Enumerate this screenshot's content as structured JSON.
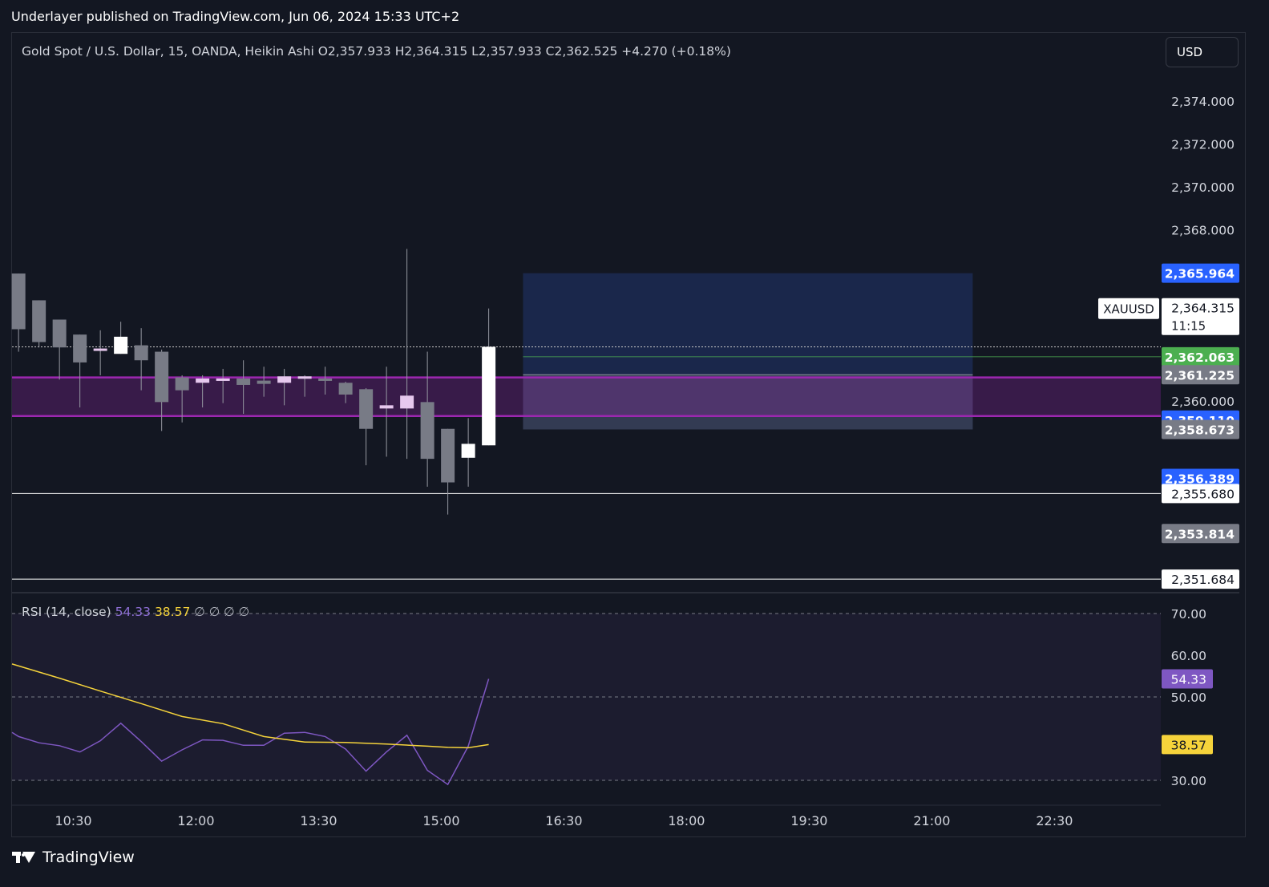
{
  "header": {
    "published_text": "Underlayer published on TradingView.com, Jun 06, 2024 15:33 UTC+2"
  },
  "legend": {
    "symbol": "Gold Spot / U.S. Dollar, 15, OANDA, Heikin Ashi",
    "open": "O2,357.933",
    "high": "H2,364.315",
    "low": "L2,357.933",
    "close": "C2,362.525",
    "change": "+4.270 (+0.18%)"
  },
  "currency_button": "USD",
  "footer": {
    "brand": "TradingView",
    "icon": "tradingview-logo-icon"
  },
  "colors": {
    "background": "#131722",
    "candle_up": "#ffffff",
    "candle_down": "#787b86",
    "candle_mid": "#e6c8ee",
    "zone_purple": "#9c27b0",
    "box_blue": "#1c2a52",
    "rsi_line": "#7e57c2",
    "rsi_ma": "#f5d33b",
    "label_blue": "#2962ff",
    "label_green": "#4caf50",
    "label_gray": "#787b86"
  },
  "chart_data": [
    {
      "type": "candlestick",
      "style": "Heikin Ashi",
      "symbol": "XAUUSD",
      "ylim": [
        2351.0,
        2375.5
      ],
      "y_ticks": [
        "2,374.000",
        "2,372.000",
        "2,370.000",
        "2,368.000",
        "2,360.000"
      ],
      "x_ticks": [
        "10:30",
        "12:00",
        "13:30",
        "15:00",
        "16:30",
        "18:00",
        "19:30",
        "21:00",
        "22:30"
      ],
      "x_range": [
        9.75,
        23.8
      ],
      "candles": [
        {
          "t": 9.83,
          "o": 2365.95,
          "c": 2363.35,
          "h": 2365.95,
          "l": 2362.3,
          "dir": "down"
        },
        {
          "t": 10.08,
          "o": 2364.7,
          "c": 2362.75,
          "h": 2364.7,
          "l": 2362.5,
          "dir": "down"
        },
        {
          "t": 10.33,
          "o": 2363.8,
          "c": 2362.5,
          "h": 2363.8,
          "l": 2361.0,
          "dir": "down"
        },
        {
          "t": 10.58,
          "o": 2363.1,
          "c": 2361.8,
          "h": 2363.1,
          "l": 2359.7,
          "dir": "down"
        },
        {
          "t": 10.83,
          "o": 2362.45,
          "c": 2362.35,
          "h": 2363.3,
          "l": 2361.2,
          "dir": "mid"
        },
        {
          "t": 11.08,
          "o": 2362.2,
          "c": 2363.0,
          "h": 2363.7,
          "l": 2362.2,
          "dir": "up"
        },
        {
          "t": 11.33,
          "o": 2362.6,
          "c": 2361.9,
          "h": 2363.4,
          "l": 2360.5,
          "dir": "down"
        },
        {
          "t": 11.58,
          "o": 2362.3,
          "c": 2359.95,
          "h": 2362.4,
          "l": 2358.6,
          "dir": "down"
        },
        {
          "t": 11.83,
          "o": 2361.1,
          "c": 2360.5,
          "h": 2361.2,
          "l": 2359.0,
          "dir": "down"
        },
        {
          "t": 12.08,
          "o": 2361.05,
          "c": 2360.85,
          "h": 2361.2,
          "l": 2359.7,
          "dir": "mid"
        },
        {
          "t": 12.33,
          "o": 2361.0,
          "c": 2361.05,
          "h": 2361.5,
          "l": 2359.9,
          "dir": "mid"
        },
        {
          "t": 12.58,
          "o": 2361.05,
          "c": 2360.75,
          "h": 2361.9,
          "l": 2359.4,
          "dir": "down"
        },
        {
          "t": 12.83,
          "o": 2360.95,
          "c": 2360.8,
          "h": 2361.6,
          "l": 2360.2,
          "dir": "down"
        },
        {
          "t": 13.08,
          "o": 2360.85,
          "c": 2361.15,
          "h": 2361.5,
          "l": 2359.8,
          "dir": "mid"
        },
        {
          "t": 13.33,
          "o": 2361.15,
          "c": 2361.05,
          "h": 2361.2,
          "l": 2360.2,
          "dir": "mid"
        },
        {
          "t": 13.58,
          "o": 2361.05,
          "c": 2360.95,
          "h": 2361.6,
          "l": 2360.3,
          "dir": "down"
        },
        {
          "t": 13.83,
          "o": 2360.85,
          "c": 2360.3,
          "h": 2360.9,
          "l": 2359.9,
          "dir": "down"
        },
        {
          "t": 14.08,
          "o": 2360.55,
          "c": 2358.7,
          "h": 2360.6,
          "l": 2357.0,
          "dir": "down"
        },
        {
          "t": 14.33,
          "o": 2359.65,
          "c": 2359.8,
          "h": 2361.6,
          "l": 2357.4,
          "dir": "mid"
        },
        {
          "t": 14.58,
          "o": 2359.65,
          "c": 2360.25,
          "h": 2367.1,
          "l": 2357.3,
          "dir": "mid"
        },
        {
          "t": 14.83,
          "o": 2359.95,
          "c": 2357.3,
          "h": 2362.3,
          "l": 2356.0,
          "dir": "down"
        },
        {
          "t": 15.08,
          "o": 2358.7,
          "c": 2356.2,
          "h": 2358.7,
          "l": 2354.7,
          "dir": "down"
        },
        {
          "t": 15.33,
          "o": 2357.35,
          "c": 2358.0,
          "h": 2359.2,
          "l": 2356.0,
          "dir": "up"
        },
        {
          "t": 15.58,
          "o": 2357.93,
          "c": 2362.53,
          "h": 2364.32,
          "l": 2357.93,
          "dir": "up"
        }
      ],
      "horizontal_lines": [
        {
          "price": 2362.525,
          "style": "dotted"
        },
        {
          "price": 2362.063,
          "style": "solid-green"
        },
        {
          "price": 2361.225,
          "style": "gray"
        },
        {
          "price": 2355.68,
          "style": "white"
        },
        {
          "price": 2351.684,
          "style": "white"
        }
      ],
      "zone": {
        "top": 2361.1,
        "bottom": 2359.3
      },
      "rect": {
        "t_start": 16.0,
        "t_end": 21.5,
        "top": 2365.964,
        "bottom": 2358.673
      },
      "price_labels": [
        {
          "text": "2,365.964",
          "price": 2365.964,
          "color": "blue"
        },
        {
          "text": "2,364.315",
          "sub": "11:15",
          "price": 2364.315,
          "color": "white",
          "tag": "XAUUSD"
        },
        {
          "text": "2,362.063",
          "price": 2362.063,
          "color": "green"
        },
        {
          "text": "2,361.225",
          "price": 2361.225,
          "color": "gray"
        },
        {
          "text": "2,359.110",
          "price": 2359.11,
          "color": "blue"
        },
        {
          "text": "2,358.673",
          "price": 2358.673,
          "color": "gray"
        },
        {
          "text": "2,356.389",
          "price": 2356.389,
          "color": "blue"
        },
        {
          "text": "2,355.680",
          "price": 2355.68,
          "color": "white"
        },
        {
          "text": "2,353.814",
          "price": 2353.814,
          "color": "gray"
        },
        {
          "text": "2,351.684",
          "price": 2351.684,
          "color": "white"
        }
      ]
    },
    {
      "type": "line",
      "title": "RSI (14, close)",
      "legend_values": [
        "54.33",
        "38.57",
        "∅",
        "∅",
        "∅",
        "∅"
      ],
      "ylim": [
        27.5,
        71.5
      ],
      "y_ticks": [
        "70.00",
        "60.00",
        "50.00",
        "30.00"
      ],
      "levels": [
        70,
        50,
        30
      ],
      "series": [
        {
          "name": "RSI",
          "value_label": "54.33",
          "color": "rsi_line",
          "x": [
            9.75,
            9.83,
            10.08,
            10.33,
            10.58,
            10.83,
            11.08,
            11.33,
            11.58,
            11.83,
            12.08,
            12.33,
            12.58,
            12.83,
            13.08,
            13.33,
            13.58,
            13.83,
            14.08,
            14.33,
            14.58,
            14.83,
            15.08,
            15.33,
            15.58
          ],
          "values": [
            41.5,
            40.5,
            39.0,
            38.3,
            36.8,
            39.5,
            43.7,
            39.3,
            34.6,
            37.3,
            39.7,
            39.6,
            38.4,
            38.4,
            41.3,
            41.5,
            40.5,
            37.5,
            32.2,
            36.8,
            40.8,
            32.4,
            29.0,
            38.2,
            54.33
          ]
        },
        {
          "name": "RSI-based MA",
          "value_label": "38.57",
          "color": "rsi_ma",
          "x": [
            9.75,
            10.33,
            10.83,
            11.33,
            11.83,
            12.33,
            12.83,
            13.33,
            13.83,
            14.33,
            14.83,
            15.08,
            15.33,
            15.58
          ],
          "values": [
            57.9,
            54.5,
            51.4,
            48.4,
            45.3,
            43.6,
            40.5,
            39.2,
            39.1,
            38.7,
            38.2,
            37.9,
            37.8,
            38.57
          ]
        }
      ]
    }
  ]
}
